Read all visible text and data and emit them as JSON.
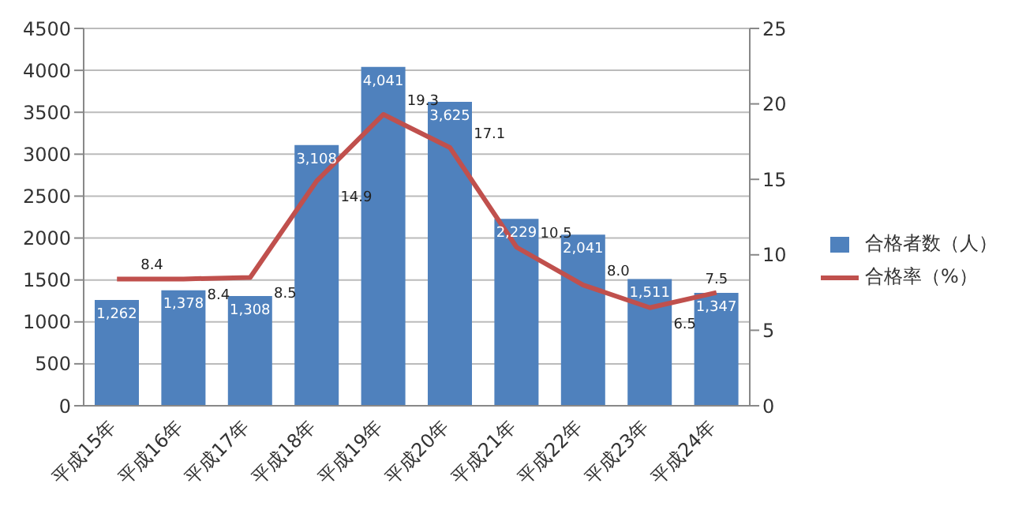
{
  "chart_data": {
    "type": "bar",
    "categories": [
      "平成15年",
      "平成16年",
      "平成17年",
      "平成18年",
      "平成19年",
      "平成20年",
      "平成21年",
      "平成22年",
      "平成23年",
      "平成24年"
    ],
    "series": [
      {
        "name": "合格者数（人）",
        "color": "#4f81bd",
        "values": [
          1262,
          1378,
          1308,
          3108,
          4041,
          3625,
          2229,
          2041,
          1511,
          1347
        ],
        "value_labels": [
          "1,262",
          "1,378",
          "1,308",
          "3,108",
          "4,041",
          "3,625",
          "2,229",
          "2,041",
          "1,511",
          "1,347"
        ]
      },
      {
        "name": "合格率（%）",
        "type": "line",
        "axis": "y2",
        "color": "#c0504d",
        "values": [
          8.4,
          8.4,
          8.5,
          14.9,
          19.3,
          17.1,
          10.5,
          8.0,
          6.5,
          7.5
        ],
        "value_labels": [
          "8.4",
          "8.4",
          "8.5",
          "14.9",
          "19.3",
          "17.1",
          "10.5",
          "8.0",
          "6.5",
          "7.5"
        ]
      }
    ],
    "ylim": [
      0,
      4500
    ],
    "yticks": [
      0,
      500,
      1000,
      1500,
      2000,
      2500,
      3000,
      3500,
      4000,
      4500
    ],
    "y2lim": [
      0,
      25
    ],
    "y2ticks": [
      0,
      5,
      10,
      15,
      20,
      25
    ],
    "grid": "y",
    "legend": "right",
    "marker": "none",
    "line_style": "solid"
  }
}
